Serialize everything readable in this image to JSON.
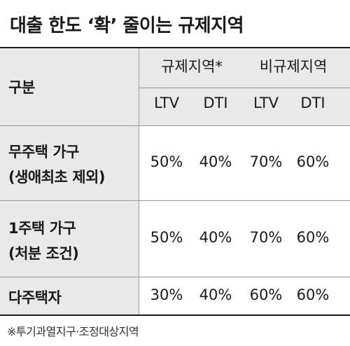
{
  "title": "대출 한도 ‘확’ 줄이는 규제지역",
  "table": {
    "corner_label": "구분",
    "group_headers": [
      "규제지역*",
      "비규제지역"
    ],
    "sub_headers": [
      "LTV",
      "DTI",
      "LTV",
      "DTI"
    ],
    "rows": [
      {
        "label_line1": "무주택 가구",
        "label_line2": "(생애최초 제외)",
        "values": [
          "50%",
          "40%",
          "70%",
          "60%"
        ]
      },
      {
        "label_line1": "1주택 가구",
        "label_line2": "(처분 조건)",
        "values": [
          "50%",
          "40%",
          "70%",
          "60%"
        ]
      },
      {
        "label_line1": "다주택자",
        "label_line2": "",
        "values": [
          "30%",
          "40%",
          "60%",
          "60%"
        ]
      }
    ]
  },
  "footnote": "※투기과열지구·조정대상지역",
  "colors": {
    "header_bg": "#e9e9e9",
    "rule": "#1a1a1a",
    "grid": "#9a9a9a"
  }
}
